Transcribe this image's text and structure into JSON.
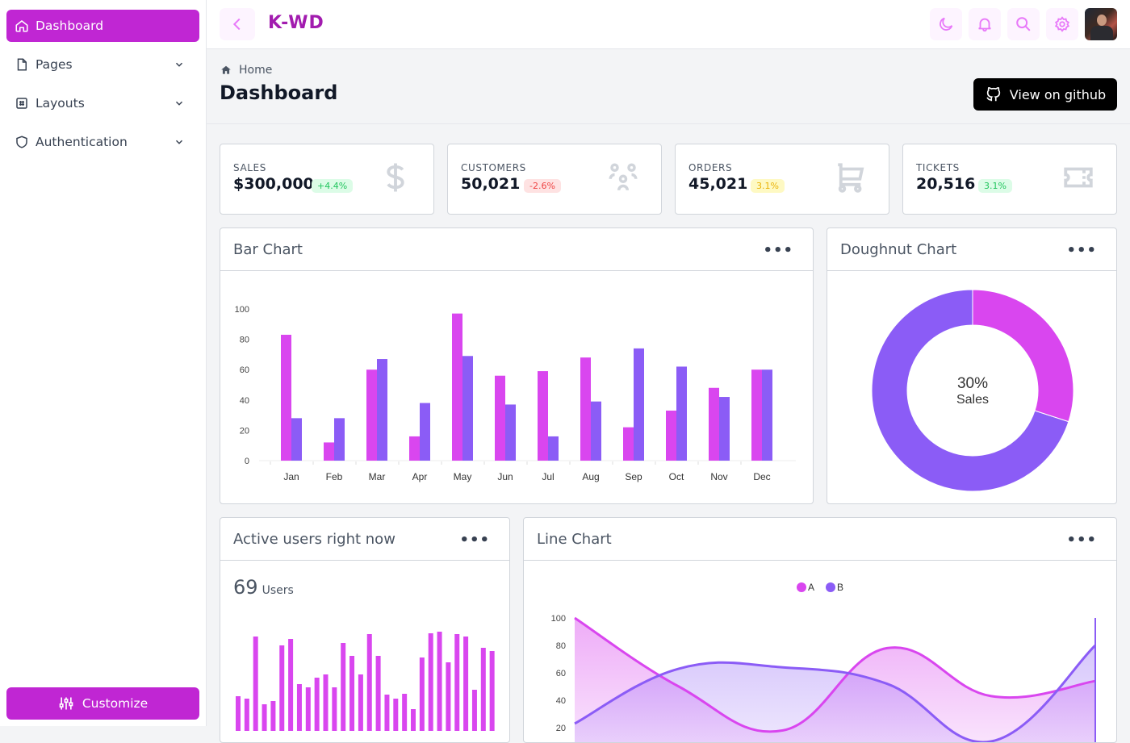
{
  "sidebar": {
    "items": [
      {
        "label": "Dashboard",
        "icon": "home-icon",
        "active": true
      },
      {
        "label": "Pages",
        "icon": "file-icon"
      },
      {
        "label": "Layouts",
        "icon": "layout-icon"
      },
      {
        "label": "Authentication",
        "icon": "shield-icon"
      }
    ],
    "customize_label": "Customize"
  },
  "header": {
    "brand": "K-WD",
    "icons": [
      "back-icon",
      "moon-icon",
      "bell-icon",
      "search-icon",
      "gear-icon"
    ]
  },
  "page": {
    "breadcrumb": "Home",
    "title": "Dashboard",
    "github_label": "View on github"
  },
  "colors": {
    "accent": "#c026d3",
    "series_a": "#d946ef",
    "series_b": "#8b5cf6"
  },
  "stats": [
    {
      "label": "SALES",
      "value": "$300,000",
      "change": "+4.4%",
      "tone": "green",
      "icon": "dollar-icon"
    },
    {
      "label": "CUSTOMERS",
      "value": "50,021",
      "change": "-2.6%",
      "tone": "red",
      "icon": "users-icon"
    },
    {
      "label": "ORDERS",
      "value": "45,021",
      "change": "3.1%",
      "tone": "yellow",
      "icon": "cart-icon"
    },
    {
      "label": "TICKETS",
      "value": "20,516",
      "change": "3.1%",
      "tone": "green",
      "icon": "ticket-icon"
    }
  ],
  "panels": {
    "bar": "Bar Chart",
    "doughnut": "Doughnut Chart",
    "active": "Active users right now",
    "line": "Line Chart"
  },
  "active_users": {
    "count": "69",
    "unit": "Users"
  },
  "chart_data": [
    {
      "type": "bar",
      "categories": [
        "Jan",
        "Feb",
        "Mar",
        "Apr",
        "May",
        "Jun",
        "Jul",
        "Aug",
        "Sep",
        "Oct",
        "Nov",
        "Dec"
      ],
      "series": [
        {
          "values": [
            83,
            12,
            60,
            16,
            97,
            56,
            59,
            68,
            22,
            33,
            48,
            60
          ]
        },
        {
          "values": [
            28,
            28,
            67,
            38,
            69,
            37,
            16,
            39,
            74,
            62,
            42,
            60
          ]
        }
      ],
      "ylim": [
        0,
        100
      ],
      "yticks": [
        "0",
        "20",
        "40",
        "60",
        "80",
        "100"
      ]
    },
    {
      "type": "pie",
      "variant": "doughnut",
      "slices": [
        {
          "label": "Sales",
          "value": 30
        },
        {
          "value": 70
        }
      ],
      "center_value": "30%",
      "center_label": "Sales"
    },
    {
      "type": "bar",
      "values": [
        43,
        40,
        117,
        33,
        37,
        106,
        114,
        58,
        54,
        66,
        70,
        54,
        109,
        93,
        70,
        120,
        93,
        45,
        40,
        46,
        27,
        91,
        121,
        123,
        85,
        120,
        117,
        51,
        103,
        99
      ]
    },
    {
      "type": "area",
      "series": [
        {
          "name": "A",
          "values": [
            100,
            50,
            18,
            78,
            43,
            54
          ]
        },
        {
          "name": "B",
          "values": [
            23,
            63,
            64,
            52,
            10,
            80
          ]
        }
      ],
      "ylim": [
        0,
        100
      ],
      "yticks": [
        "100",
        "80",
        "60",
        "40",
        "20"
      ]
    }
  ]
}
